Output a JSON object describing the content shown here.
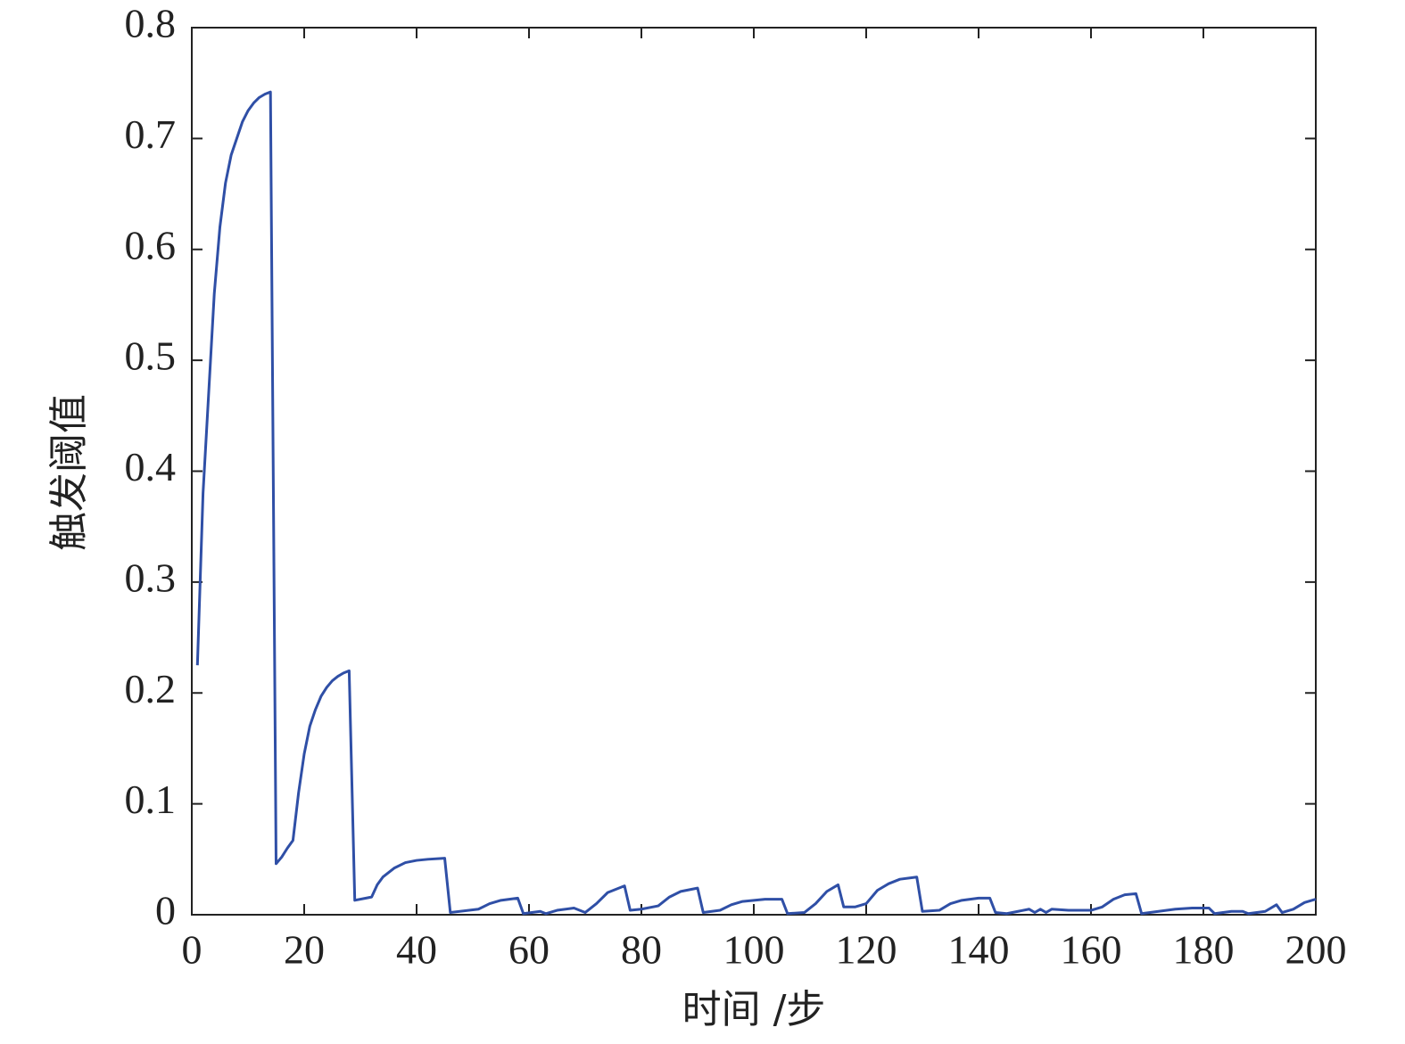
{
  "chart_data": {
    "type": "line",
    "xlabel": "时间 /步",
    "ylabel": "触发阈值",
    "xlim": [
      0,
      200
    ],
    "xticks": [
      0,
      20,
      40,
      60,
      80,
      100,
      120,
      140,
      160,
      180,
      200
    ],
    "ylim": [
      0,
      0.8
    ],
    "yticks": [
      0,
      0.1,
      0.2,
      0.3,
      0.4,
      0.5,
      0.6,
      0.7,
      0.8
    ],
    "grid": false,
    "series": [
      {
        "color": "#2f4fa6",
        "x": [
          1,
          2,
          3,
          4,
          5,
          6,
          7,
          8,
          9,
          10,
          11,
          12,
          13,
          14,
          15,
          16,
          17,
          18,
          19,
          20,
          21,
          22,
          23,
          24,
          25,
          26,
          27,
          28,
          29,
          31,
          32,
          33,
          34,
          36,
          38,
          40,
          42,
          45,
          46,
          51,
          53,
          55,
          58,
          59,
          62,
          63,
          65,
          68,
          70,
          72,
          74,
          77,
          78,
          80,
          83,
          85,
          87,
          90,
          91,
          94,
          96,
          98,
          102,
          105,
          106,
          109,
          111,
          113,
          115,
          116,
          118,
          120,
          122,
          124,
          126,
          129,
          130,
          133,
          135,
          137,
          140,
          142,
          143,
          145,
          149,
          150,
          151,
          152,
          153,
          156,
          160,
          162,
          164,
          166,
          168,
          169,
          172,
          175,
          178,
          181,
          182,
          185,
          187,
          188,
          191,
          193,
          194,
          196,
          198,
          200
        ],
        "values": [
          0.225,
          0.38,
          0.47,
          0.56,
          0.62,
          0.66,
          0.685,
          0.7,
          0.715,
          0.725,
          0.732,
          0.737,
          0.74,
          0.742,
          0.046,
          0.052,
          0.06,
          0.067,
          0.11,
          0.145,
          0.17,
          0.185,
          0.197,
          0.205,
          0.211,
          0.215,
          0.218,
          0.22,
          0.013,
          0.015,
          0.016,
          0.027,
          0.034,
          0.042,
          0.047,
          0.049,
          0.05,
          0.051,
          0.002,
          0.005,
          0.01,
          0.013,
          0.015,
          0.001,
          0.003,
          0.001,
          0.004,
          0.006,
          0.002,
          0.01,
          0.02,
          0.026,
          0.004,
          0.005,
          0.008,
          0.016,
          0.021,
          0.024,
          0.002,
          0.004,
          0.009,
          0.012,
          0.014,
          0.014,
          0.001,
          0.002,
          0.01,
          0.021,
          0.027,
          0.007,
          0.007,
          0.01,
          0.022,
          0.028,
          0.032,
          0.034,
          0.003,
          0.004,
          0.01,
          0.013,
          0.015,
          0.015,
          0.002,
          0.001,
          0.005,
          0.002,
          0.005,
          0.002,
          0.005,
          0.004,
          0.004,
          0.007,
          0.014,
          0.018,
          0.019,
          0.001,
          0.003,
          0.005,
          0.006,
          0.006,
          0.001,
          0.003,
          0.003,
          0.001,
          0.003,
          0.009,
          0.002,
          0.005,
          0.011,
          0.014
        ]
      }
    ]
  }
}
